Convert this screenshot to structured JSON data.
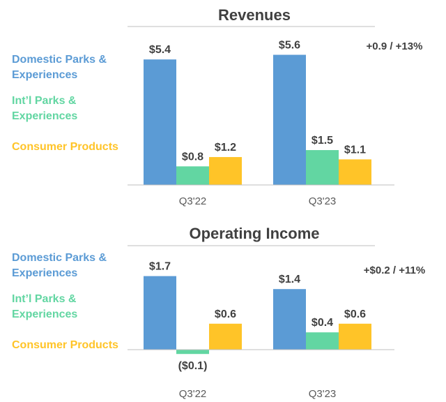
{
  "colors": {
    "domestic": "#5B9BD5",
    "international": "#62D6A2",
    "consumer": "#FFC428",
    "text": "#404040",
    "axis": "#BFBFBF"
  },
  "chart_data": [
    {
      "type": "bar",
      "title": "Revenues",
      "categories": [
        "Q3'22",
        "Q3'23"
      ],
      "series": [
        {
          "name": "Domestic Parks & Experiences",
          "values": [
            5.4,
            5.6
          ],
          "labels": [
            "$5.4",
            "$5.6"
          ]
        },
        {
          "name": "Int’l Parks & Experiences",
          "values": [
            0.8,
            1.5
          ],
          "labels": [
            "$0.8",
            "$1.5"
          ]
        },
        {
          "name": "Consumer Products",
          "values": [
            1.2,
            1.1
          ],
          "labels": [
            "$1.2",
            "$1.1"
          ]
        }
      ],
      "annotation": "+0.9 / +13%",
      "legend_lines": [
        [
          "Domestic Parks &",
          "Experiences"
        ],
        [
          "Int’l Parks &",
          "Experiences"
        ],
        [
          "Consumer Products"
        ]
      ],
      "ylim": [
        0,
        6.3
      ],
      "legend": "left",
      "grid": false
    },
    {
      "type": "bar",
      "title": "Operating Income",
      "categories": [
        "Q3'22",
        "Q3'23"
      ],
      "series": [
        {
          "name": "Domestic Parks & Experiences",
          "values": [
            1.7,
            1.4
          ],
          "labels": [
            "$1.7",
            "$1.4"
          ]
        },
        {
          "name": "Int’l Parks & Experiences",
          "values": [
            -0.1,
            0.4
          ],
          "labels": [
            "($0.1)",
            "$0.4"
          ]
        },
        {
          "name": "Consumer Products",
          "values": [
            0.6,
            0.6
          ],
          "labels": [
            "$0.6",
            "$0.6"
          ]
        }
      ],
      "annotation": "+$0.2 / +11%",
      "legend_lines": [
        [
          "Domestic Parks &",
          "Experiences"
        ],
        [
          "Int’l Parks &",
          "Experiences"
        ],
        [
          "Consumer Products"
        ]
      ],
      "ylim": [
        -0.1,
        2.0
      ],
      "legend": "left",
      "grid": false
    }
  ]
}
